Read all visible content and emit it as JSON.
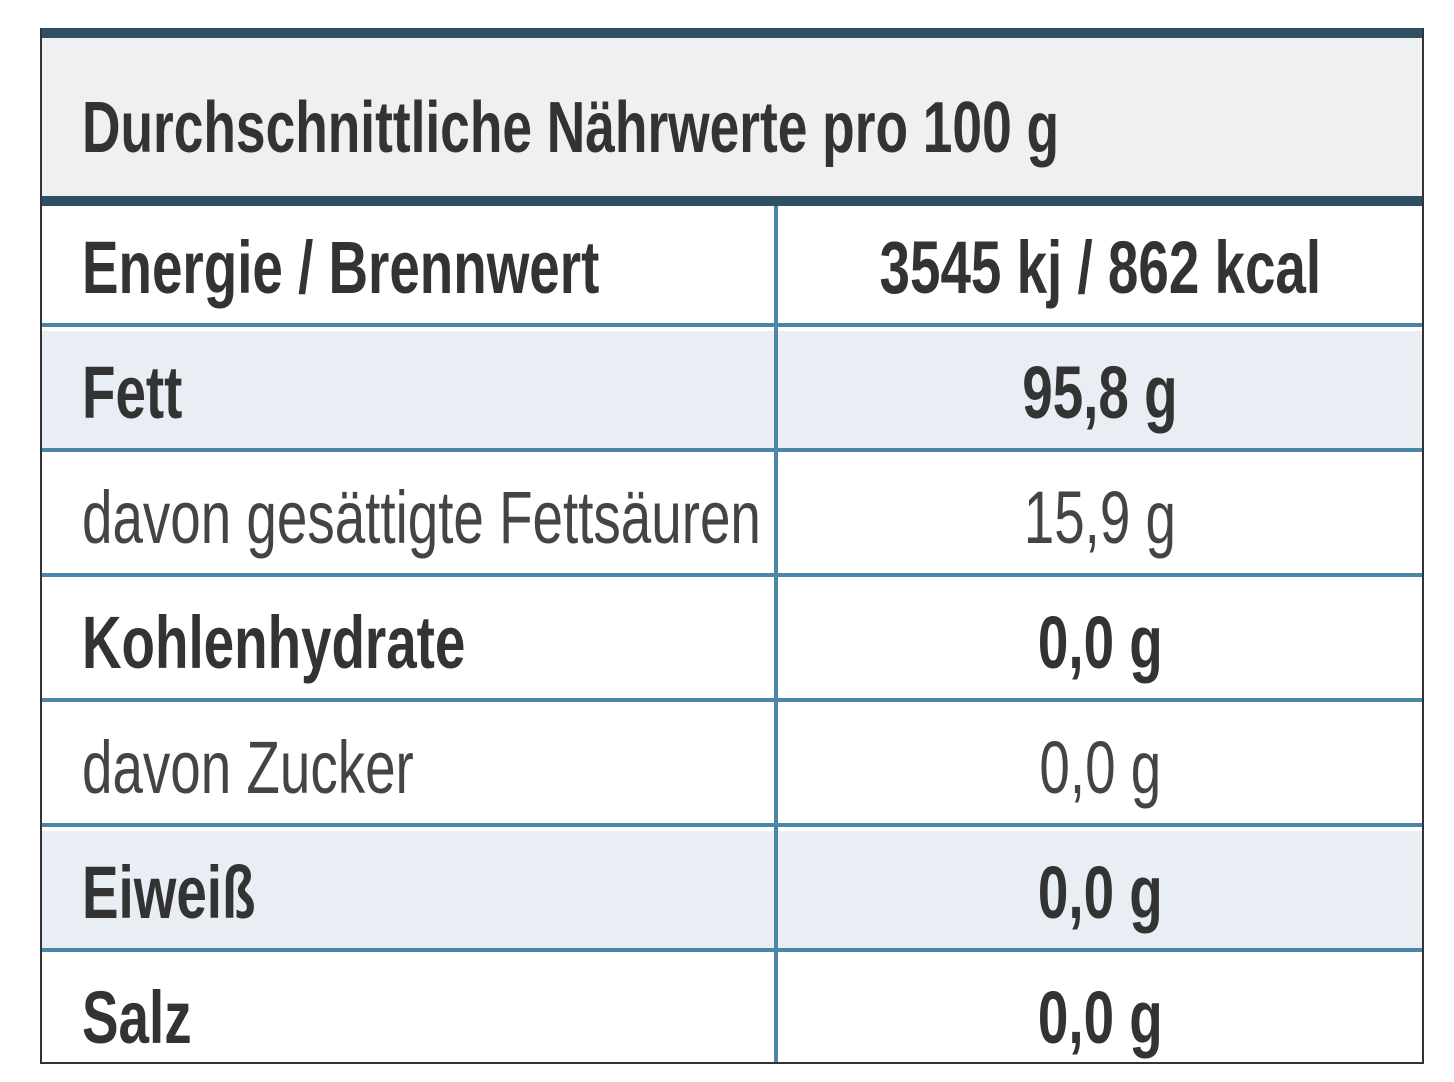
{
  "header": {
    "title": "Durchschnittliche Nährwerte pro 100 g"
  },
  "table": {
    "rows": [
      [
        "Energie / Brennwert",
        "3545 kj / 862 kcal"
      ],
      [
        "Fett",
        "95,8 g"
      ],
      [
        "davon gesättigte Fettsäuren",
        "15,9 g"
      ],
      [
        "Kohlenhydrate",
        "0,0 g"
      ],
      [
        "davon Zucker",
        "0,0 g"
      ],
      [
        "Eiweiß",
        "0,0 g"
      ],
      [
        "Salz",
        "0,0 g"
      ]
    ]
  }
}
